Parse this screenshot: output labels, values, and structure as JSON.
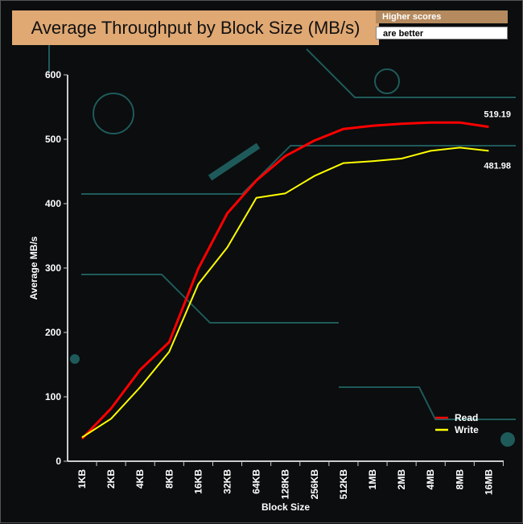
{
  "badge": {
    "line1": "Higher scores",
    "line2": "are better"
  },
  "chart_data": {
    "type": "line",
    "title": "Average Throughput by Block Size (MB/s)",
    "xlabel": "Block Size",
    "ylabel": "Average MB/s",
    "ylim": [
      0,
      600
    ],
    "yticks": [
      0,
      100,
      200,
      300,
      400,
      500,
      600
    ],
    "categories": [
      "1KB",
      "2KB",
      "4KB",
      "8KB",
      "16KB",
      "32KB",
      "64KB",
      "128KB",
      "256KB",
      "512KB",
      "1MB",
      "2MB",
      "4MB",
      "8MB",
      "16MB"
    ],
    "series": [
      {
        "name": "Read",
        "color": "#ff0000",
        "values": [
          35,
          82,
          142,
          185,
          299,
          385,
          436,
          474,
          498,
          516,
          521,
          524,
          526,
          526,
          519.19
        ],
        "end_label": "519.19"
      },
      {
        "name": "Write",
        "color": "#ffff00",
        "values": [
          37,
          66,
          115,
          170,
          275,
          332,
          409,
          416,
          443,
          463,
          466,
          470,
          482,
          487,
          481.98
        ],
        "end_label": "481.98"
      }
    ],
    "legend": "bottom-right"
  }
}
